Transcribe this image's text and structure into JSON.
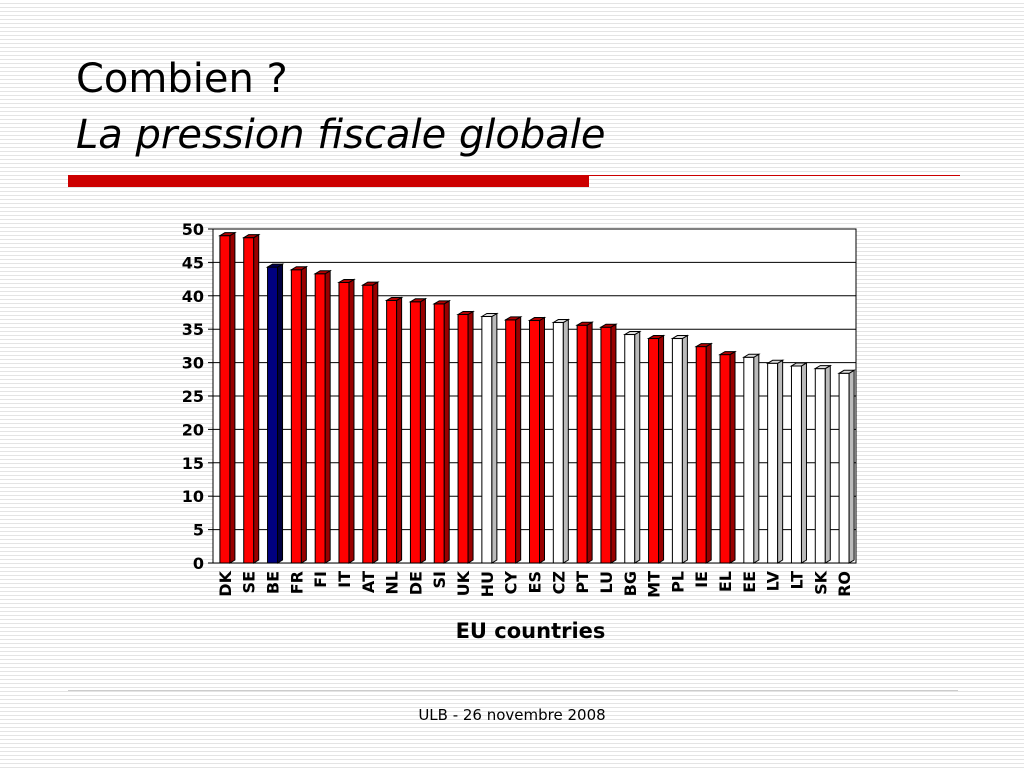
{
  "slide": {
    "title_line1": "Combien ?",
    "title_line2": "La pression fiscale globale",
    "footer": "ULB - 26 novembre 2008"
  },
  "colors": {
    "highlight": "#000080",
    "default": "#ff0000",
    "non_eurozone": "#ffffff",
    "accent_rule": "#cc0000"
  },
  "chart_data": {
    "type": "bar",
    "title": "",
    "xlabel": "EU countries",
    "ylabel": "",
    "ylim": [
      0,
      50
    ],
    "yticks": [
      0,
      5,
      10,
      15,
      20,
      25,
      30,
      35,
      40,
      45,
      50
    ],
    "grid": true,
    "categories": [
      "DK",
      "SE",
      "BE",
      "FR",
      "FI",
      "IT",
      "AT",
      "NL",
      "DE",
      "SI",
      "UK",
      "HU",
      "CY",
      "ES",
      "CZ",
      "PT",
      "LU",
      "BG",
      "MT",
      "PL",
      "IE",
      "EL",
      "EE",
      "LV",
      "LT",
      "SK",
      "RO"
    ],
    "values": [
      49.0,
      48.7,
      44.3,
      43.9,
      43.3,
      42.0,
      41.6,
      39.3,
      39.1,
      38.8,
      37.2,
      36.9,
      36.4,
      36.3,
      36.0,
      35.6,
      35.3,
      34.2,
      33.6,
      33.6,
      32.4,
      31.2,
      30.8,
      29.9,
      29.5,
      29.1,
      28.4
    ],
    "bar_colors": [
      "red",
      "red",
      "navy",
      "red",
      "red",
      "red",
      "red",
      "red",
      "red",
      "red",
      "red",
      "white",
      "red",
      "red",
      "white",
      "red",
      "red",
      "white",
      "red",
      "white",
      "red",
      "red",
      "white",
      "white",
      "white",
      "white",
      "white"
    ]
  }
}
